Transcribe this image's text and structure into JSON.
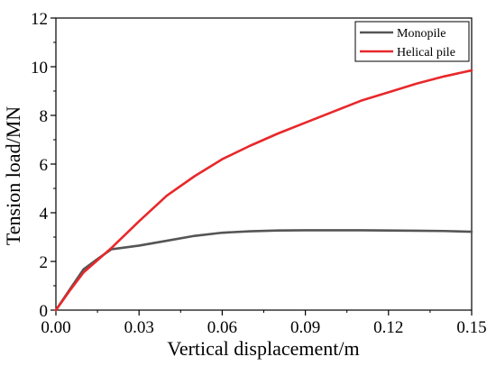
{
  "chart_data": {
    "type": "line",
    "title": "",
    "xlabel": "Vertical displacement/m",
    "ylabel": "Tension load/MN",
    "xlim": [
      0,
      0.15
    ],
    "ylim": [
      0,
      12
    ],
    "x_ticks": [
      0,
      0.03,
      0.06,
      0.09,
      0.12,
      0.15
    ],
    "x_tick_labels": [
      "0.00",
      "0.03",
      "0.06",
      "0.09",
      "0.12",
      "0.15"
    ],
    "y_ticks": [
      0,
      2,
      4,
      6,
      8,
      10,
      12
    ],
    "y_tick_labels": [
      "0",
      "2",
      "4",
      "6",
      "8",
      "10",
      "12"
    ],
    "grid": false,
    "legend_position": "top-right",
    "series": [
      {
        "name": "Monopile",
        "color": "#555555",
        "x": [
          0,
          0.005,
          0.01,
          0.015,
          0.02,
          0.03,
          0.04,
          0.05,
          0.06,
          0.07,
          0.08,
          0.09,
          0.1,
          0.11,
          0.12,
          0.13,
          0.14,
          0.15
        ],
        "y": [
          0,
          0.85,
          1.68,
          2.1,
          2.5,
          2.65,
          2.85,
          3.05,
          3.18,
          3.24,
          3.27,
          3.28,
          3.28,
          3.28,
          3.27,
          3.26,
          3.25,
          3.22
        ]
      },
      {
        "name": "Helical pile",
        "color": "#e8282b",
        "x": [
          0,
          0.005,
          0.01,
          0.015,
          0.02,
          0.03,
          0.04,
          0.05,
          0.06,
          0.07,
          0.08,
          0.09,
          0.1,
          0.11,
          0.12,
          0.13,
          0.14,
          0.15
        ],
        "y": [
          0,
          0.8,
          1.55,
          2.05,
          2.55,
          3.65,
          4.7,
          5.5,
          6.2,
          6.75,
          7.25,
          7.7,
          8.15,
          8.6,
          8.95,
          9.3,
          9.6,
          9.85
        ]
      }
    ]
  }
}
